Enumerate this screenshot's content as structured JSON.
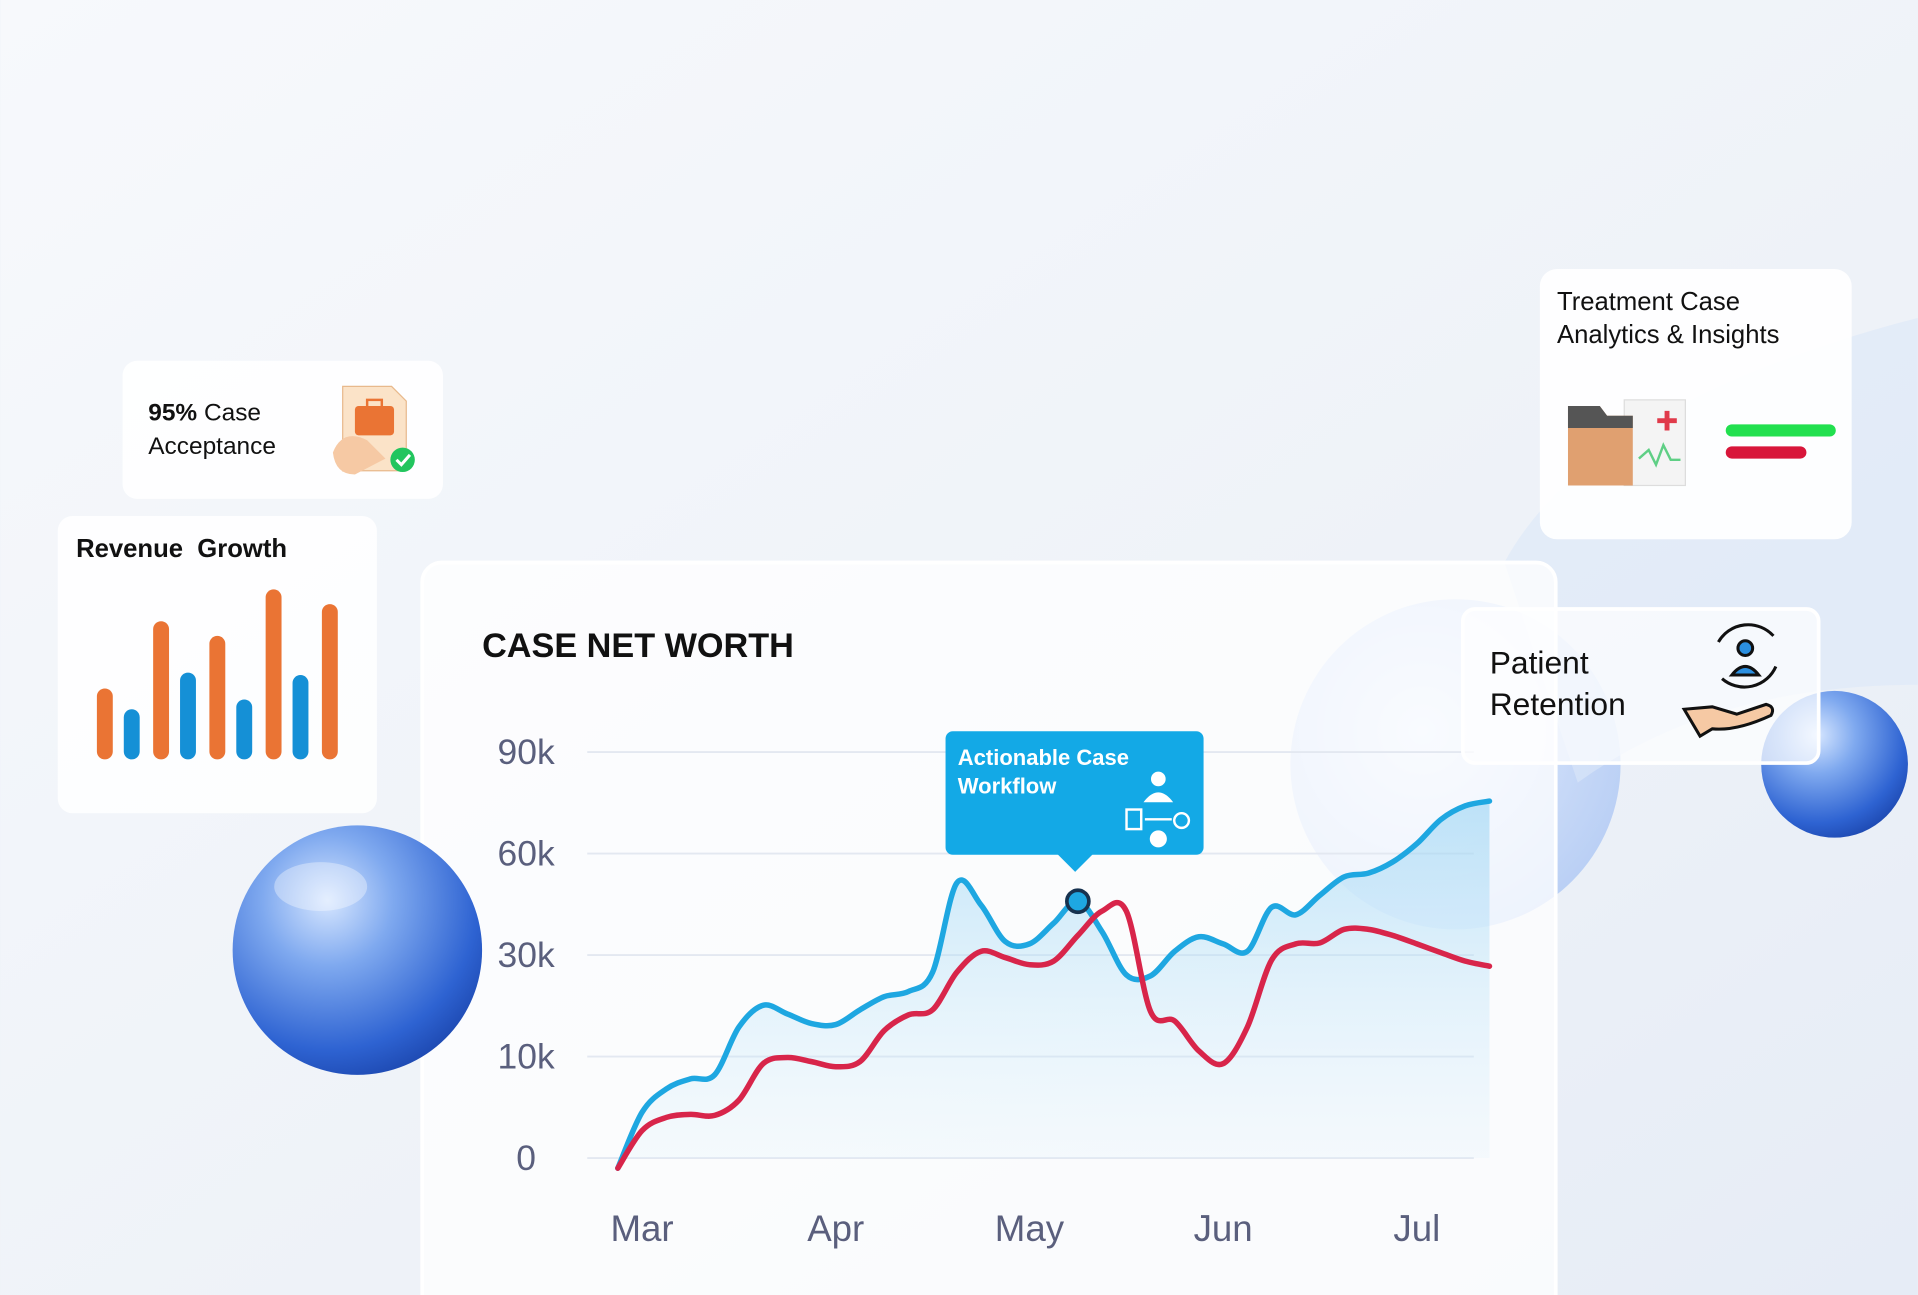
{
  "cards": {
    "acceptance": {
      "highlight": "95%",
      "text": "Case",
      "line2": "Acceptance"
    },
    "treatment": {
      "lines": [
        "Treatment Case",
        "Analytics & Insights"
      ]
    },
    "retention": {
      "lines": [
        "Patient",
        "Retention"
      ]
    }
  },
  "chart_data": [
    {
      "type": "line",
      "title": "CASE NET WORTH",
      "annotation": [
        "Actionable Case",
        "Workflow"
      ],
      "categories": [
        null,
        "Mar",
        null,
        null,
        null,
        null,
        null,
        null,
        null,
        "Apr",
        null,
        null,
        null,
        null,
        null,
        null,
        null,
        "May",
        null,
        null,
        null,
        null,
        null,
        null,
        null,
        "Jun",
        null,
        null,
        null,
        null,
        null,
        null,
        null,
        "Jul",
        null,
        null,
        null
      ],
      "series": [
        {
          "color": "#1ea7e1",
          "values": [
            -1000,
            4500,
            6800,
            7800,
            8200,
            15800,
            20100,
            18400,
            16500,
            16300,
            19200,
            21800,
            22800,
            26600,
            51300,
            44800,
            34000,
            33300,
            39400,
            45900,
            36900,
            26100,
            25900,
            31100,
            35400,
            33300,
            31100,
            44100,
            41900,
            47700,
            53100,
            54200,
            57500,
            62900,
            70100,
            74100,
            75500
          ]
        },
        {
          "color": "#d8254a",
          "values": [
            -1000,
            2700,
            4000,
            4300,
            4200,
            5700,
            9300,
            9900,
            9500,
            9000,
            9500,
            15100,
            18200,
            19200,
            26600,
            31100,
            29500,
            28100,
            28800,
            35800,
            43000,
            43000,
            18900,
            17000,
            11100,
            9300,
            15800,
            29000,
            33300,
            33600,
            37600,
            37600,
            35800,
            33300,
            30700,
            28800,
            27800
          ]
        }
      ],
      "ylim": [
        0,
        90000
      ],
      "yticks": [
        {
          "value": 0,
          "label": "0"
        },
        {
          "value": 10000,
          "label": "10k"
        },
        {
          "value": 30000,
          "label": "30k"
        },
        {
          "value": 60000,
          "label": "60k"
        },
        {
          "value": 90000,
          "label": "90k"
        }
      ],
      "grid": true
    },
    {
      "type": "bar",
      "title": "Revenue  Growth",
      "categories": [
        null,
        null,
        null,
        null,
        null
      ],
      "series": [
        {
          "color": "#ea7434",
          "values": [
            58,
            113,
            101,
            139,
            127
          ]
        },
        {
          "color": "#1590d6",
          "values": [
            41,
            71,
            49,
            69,
            null
          ]
        }
      ],
      "ylim": [
        0,
        140
      ]
    }
  ]
}
